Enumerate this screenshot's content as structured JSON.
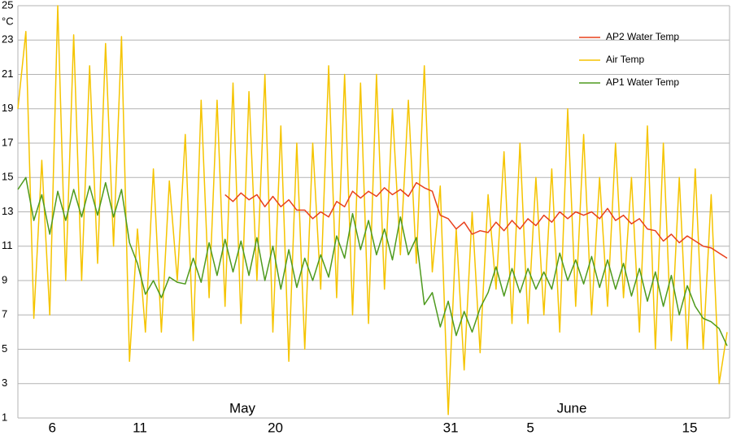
{
  "chart_data": {
    "type": "line",
    "y_unit": "°C",
    "month_labels": [
      "May",
      "June"
    ],
    "categories": [
      null,
      null,
      null,
      null,
      "6",
      null,
      null,
      null,
      null,
      null,
      null,
      null,
      null,
      null,
      null,
      "11",
      null,
      null,
      null,
      null,
      null,
      null,
      null,
      null,
      null,
      null,
      null,
      null,
      null,
      null,
      null,
      null,
      "20",
      null,
      null,
      null,
      null,
      null,
      null,
      null,
      null,
      null,
      null,
      null,
      null,
      null,
      null,
      null,
      null,
      null,
      null,
      null,
      null,
      null,
      "31",
      null,
      null,
      null,
      null,
      null,
      null,
      null,
      null,
      null,
      "5",
      null,
      null,
      null,
      null,
      null,
      null,
      null,
      null,
      null,
      null,
      null,
      null,
      null,
      null,
      null,
      null,
      null,
      null,
      null,
      "15",
      null,
      null,
      null,
      null,
      null
    ],
    "series": [
      {
        "name": "AP2 Water Temp",
        "color": "#e8401c",
        "values": [
          null,
          null,
          null,
          null,
          null,
          null,
          null,
          null,
          null,
          null,
          null,
          null,
          null,
          null,
          null,
          null,
          null,
          null,
          null,
          null,
          null,
          null,
          null,
          null,
          null,
          null,
          14.0,
          13.6,
          14.1,
          13.7,
          14.0,
          13.3,
          13.9,
          13.3,
          13.7,
          13.1,
          13.1,
          12.6,
          13.0,
          12.7,
          13.6,
          13.3,
          14.2,
          13.8,
          14.2,
          13.9,
          14.4,
          14.0,
          14.3,
          13.9,
          14.7,
          14.4,
          14.2,
          12.8,
          12.6,
          12.0,
          12.4,
          11.7,
          11.9,
          11.8,
          12.4,
          11.9,
          12.5,
          12.0,
          12.6,
          12.2,
          12.8,
          12.4,
          13.0,
          12.6,
          13.0,
          12.8,
          13.0,
          12.6,
          13.2,
          12.5,
          12.8,
          12.3,
          12.6,
          12.0,
          11.9,
          11.3,
          11.7,
          11.2,
          11.6,
          11.3,
          11.0,
          10.9,
          10.6,
          10.3
        ]
      },
      {
        "name": "Air Temp",
        "color": "#f5c400",
        "values": [
          19,
          23.5,
          6.8,
          16,
          7,
          25,
          9,
          23.3,
          9,
          21.5,
          10,
          22.8,
          11,
          23.2,
          4.3,
          12,
          6,
          15.5,
          6,
          14.8,
          9,
          17.5,
          5.5,
          19.5,
          8,
          19.5,
          7.5,
          20.5,
          6.5,
          20,
          9,
          21,
          6,
          18,
          4.3,
          17,
          5,
          17,
          8.5,
          21.5,
          8,
          21,
          7,
          20.5,
          6.5,
          21,
          8.5,
          19,
          10.5,
          19.5,
          10,
          21.5,
          9.5,
          14.5,
          1.2,
          12,
          3.8,
          13,
          4.8,
          14,
          8.5,
          16.5,
          6.5,
          17,
          6.5,
          15,
          7,
          15.5,
          6,
          19,
          7.5,
          17.5,
          7,
          15,
          7.5,
          17,
          8,
          15,
          6,
          18,
          5,
          17,
          5.5,
          15,
          5,
          15.5,
          5,
          14,
          3,
          6
        ]
      },
      {
        "name": "AP1 Water Temp",
        "color": "#4e9a1e",
        "values": [
          14.3,
          15.0,
          12.5,
          14.0,
          11.7,
          14.2,
          12.5,
          14.3,
          12.7,
          14.5,
          12.8,
          14.7,
          12.7,
          14.3,
          11.2,
          10.0,
          8.2,
          9.0,
          8.0,
          9.2,
          8.9,
          8.8,
          10.3,
          8.9,
          11.2,
          9.3,
          11.4,
          9.5,
          11.3,
          9.3,
          11.5,
          9.0,
          11.0,
          8.5,
          10.8,
          8.6,
          10.3,
          9.0,
          10.5,
          9.2,
          11.6,
          10.3,
          12.9,
          10.8,
          12.5,
          10.5,
          12.0,
          10.2,
          12.7,
          10.5,
          11.5,
          7.6,
          8.3,
          6.3,
          7.8,
          5.8,
          7.2,
          6.0,
          7.4,
          8.3,
          9.8,
          8.1,
          9.7,
          8.3,
          9.7,
          8.5,
          9.5,
          8.5,
          10.6,
          9.0,
          10.2,
          8.8,
          10.4,
          8.6,
          10.2,
          8.5,
          10.0,
          8.1,
          9.7,
          7.8,
          9.5,
          7.5,
          9.3,
          7.0,
          8.7,
          7.5,
          6.8,
          6.6,
          6.2,
          5.2
        ]
      }
    ],
    "ylim": [
      1,
      25
    ],
    "yticks": [
      1,
      3,
      5,
      7,
      9,
      11,
      13,
      15,
      17,
      19,
      21,
      23,
      25
    ],
    "grid": true,
    "legend": "top-right"
  }
}
